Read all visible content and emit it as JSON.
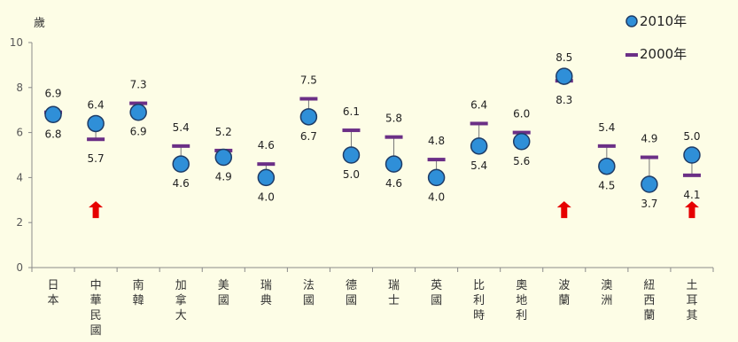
{
  "chart_data": {
    "type": "scatter",
    "unit_label": "歲",
    "ylim": [
      0,
      10
    ],
    "yticks": [
      0,
      2,
      4,
      6,
      8,
      10
    ],
    "legend": {
      "position": "top-right",
      "entries": [
        {
          "label": "2010年",
          "marker": "circle"
        },
        {
          "label": "2000年",
          "marker": "dash"
        }
      ]
    },
    "colors": {
      "circle_fill": "#2f8fd8",
      "circle_stroke": "#1f3c66",
      "dash": "#6b2f86",
      "arrow": "#e60000",
      "axis": "#8a8a8a",
      "background": "#fdfde6"
    },
    "categories": [
      "日本",
      "中華民國",
      "南韓",
      "加拿大",
      "美國",
      "瑞典",
      "法國",
      "德國",
      "瑞士",
      "英國",
      "比利時",
      "奧地利",
      "波蘭",
      "澳洲",
      "紐西蘭",
      "土耳其"
    ],
    "series": [
      {
        "name": "2010年",
        "values": [
          6.8,
          6.4,
          6.9,
          4.6,
          4.9,
          4.0,
          6.7,
          5.0,
          4.6,
          4.0,
          5.4,
          5.6,
          8.5,
          4.5,
          3.7,
          5.0
        ]
      },
      {
        "name": "2000年",
        "values": [
          6.9,
          5.7,
          7.3,
          5.4,
          5.2,
          4.6,
          7.5,
          6.1,
          5.8,
          4.8,
          6.4,
          6.0,
          8.3,
          5.4,
          4.9,
          4.1
        ]
      }
    ],
    "data_labels": [
      {
        "top": "6.9",
        "bottom": "6.8"
      },
      {
        "top": "6.4",
        "bottom": "5.7"
      },
      {
        "top": "7.3",
        "bottom": "6.9"
      },
      {
        "top": "5.4",
        "bottom": "4.6"
      },
      {
        "top": "5.2",
        "bottom": "4.9"
      },
      {
        "top": "4.6",
        "bottom": "4.0"
      },
      {
        "top": "7.5",
        "bottom": "6.7"
      },
      {
        "top": "6.1",
        "bottom": "5.0"
      },
      {
        "top": "5.8",
        "bottom": "4.6"
      },
      {
        "top": "4.8",
        "bottom": "4.0"
      },
      {
        "top": "6.4",
        "bottom": "5.4"
      },
      {
        "top": "6.0",
        "bottom": "5.6"
      },
      {
        "top": "8.5",
        "bottom": "8.3"
      },
      {
        "top": "5.4",
        "bottom": "4.5"
      },
      {
        "top": "4.9",
        "bottom": "3.7"
      },
      {
        "top": "5.0",
        "bottom": "4.1"
      }
    ],
    "increase_arrows": [
      1,
      12,
      15
    ]
  }
}
